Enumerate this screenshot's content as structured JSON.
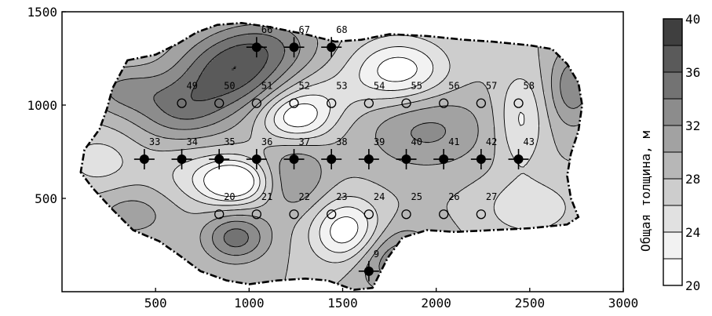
{
  "chart_data": {
    "type": "heatmap",
    "title": "",
    "xlabel": "",
    "ylabel": "",
    "xlim": [
      0,
      3000
    ],
    "ylim": [
      0,
      1500
    ],
    "x_ticks": [
      500,
      1000,
      1500,
      2000,
      2500,
      3000
    ],
    "x_tick_labels": [
      "500",
      "1000",
      "1500",
      "2000",
      "2500",
      "3000"
    ],
    "y_ticks": [
      500,
      1000,
      1500
    ],
    "y_tick_labels": [
      "500",
      "1000",
      "1500"
    ],
    "grid": false,
    "colorbar": {
      "title": "Общая толщина, м",
      "levels": [
        20,
        22,
        24,
        26,
        28,
        30,
        32,
        34,
        36,
        38,
        40
      ],
      "tick_values": [
        20,
        24,
        28,
        32,
        36,
        40
      ],
      "tick_labels": [
        "20",
        "24",
        "28",
        "32",
        "36",
        "40"
      ],
      "colors": [
        "#ffffff",
        "#f2f2f2",
        "#e1e1e1",
        "#cdcdcd",
        "#b7b7b7",
        "#a2a2a2",
        "#8c8c8c",
        "#737373",
        "#5a5a5a",
        "#3f3f3f"
      ]
    },
    "boundary": [
      [
        350,
        1240
      ],
      [
        500,
        1270
      ],
      [
        620,
        1330
      ],
      [
        720,
        1390
      ],
      [
        830,
        1430
      ],
      [
        960,
        1440
      ],
      [
        1100,
        1420
      ],
      [
        1300,
        1380
      ],
      [
        1460,
        1340
      ],
      [
        1600,
        1350
      ],
      [
        1750,
        1380
      ],
      [
        1950,
        1370
      ],
      [
        2150,
        1350
      ],
      [
        2300,
        1340
      ],
      [
        2500,
        1320
      ],
      [
        2620,
        1300
      ],
      [
        2700,
        1220
      ],
      [
        2760,
        1120
      ],
      [
        2780,
        1000
      ],
      [
        2760,
        860
      ],
      [
        2720,
        740
      ],
      [
        2700,
        620
      ],
      [
        2720,
        500
      ],
      [
        2760,
        400
      ],
      [
        2700,
        360
      ],
      [
        2500,
        340
      ],
      [
        2300,
        330
      ],
      [
        2100,
        320
      ],
      [
        1950,
        330
      ],
      [
        1820,
        290
      ],
      [
        1740,
        180
      ],
      [
        1660,
        20
      ],
      [
        1560,
        10
      ],
      [
        1420,
        60
      ],
      [
        1300,
        70
      ],
      [
        1150,
        60
      ],
      [
        1000,
        40
      ],
      [
        880,
        60
      ],
      [
        740,
        110
      ],
      [
        620,
        200
      ],
      [
        520,
        270
      ],
      [
        380,
        330
      ],
      [
        260,
        450
      ],
      [
        160,
        560
      ],
      [
        100,
        640
      ],
      [
        120,
        760
      ],
      [
        200,
        870
      ],
      [
        240,
        980
      ],
      [
        270,
        1090
      ]
    ],
    "contour_field": {
      "base": 28,
      "bumps": [
        {
          "x": 900,
          "y": 1170,
          "amp": 8.5,
          "sx": 210,
          "sy": 140
        },
        {
          "x": 640,
          "y": 970,
          "amp": 5.5,
          "sx": 180,
          "sy": 120
        },
        {
          "x": 1100,
          "y": 1330,
          "amp": 4.5,
          "sx": 200,
          "sy": 110
        },
        {
          "x": 1800,
          "y": 1180,
          "amp": -7.5,
          "sx": 180,
          "sy": 120
        },
        {
          "x": 1250,
          "y": 930,
          "amp": -7.5,
          "sx": 130,
          "sy": 90
        },
        {
          "x": 920,
          "y": 590,
          "amp": -9.5,
          "sx": 120,
          "sy": 80
        },
        {
          "x": 1520,
          "y": 320,
          "amp": -8.0,
          "sx": 130,
          "sy": 120
        },
        {
          "x": 2450,
          "y": 920,
          "amp": -4.5,
          "sx": 90,
          "sy": 180
        },
        {
          "x": 2500,
          "y": 450,
          "amp": -3.5,
          "sx": 180,
          "sy": 110
        },
        {
          "x": 1950,
          "y": 870,
          "amp": 4.5,
          "sx": 230,
          "sy": 150
        },
        {
          "x": 1250,
          "y": 620,
          "amp": 4.0,
          "sx": 120,
          "sy": 140
        },
        {
          "x": 930,
          "y": 290,
          "amp": 7.0,
          "sx": 120,
          "sy": 90
        },
        {
          "x": 1780,
          "y": 170,
          "amp": 6.0,
          "sx": 160,
          "sy": 120
        },
        {
          "x": 2730,
          "y": 1100,
          "amp": 5.5,
          "sx": 90,
          "sy": 150
        },
        {
          "x": 320,
          "y": 1080,
          "amp": 4.0,
          "sx": 150,
          "sy": 90
        },
        {
          "x": 200,
          "y": 700,
          "amp": -3.0,
          "sx": 140,
          "sy": 110
        },
        {
          "x": 380,
          "y": 420,
          "amp": 3.0,
          "sx": 160,
          "sy": 100
        },
        {
          "x": 1380,
          "y": 1050,
          "amp": -2.5,
          "sx": 160,
          "sy": 100
        },
        {
          "x": 700,
          "y": 620,
          "amp": -2.5,
          "sx": 160,
          "sy": 120
        }
      ]
    },
    "wells": [
      {
        "label": "66",
        "x": 1040,
        "y": 1310,
        "type": "filled"
      },
      {
        "label": "67",
        "x": 1240,
        "y": 1310,
        "type": "filled"
      },
      {
        "label": "68",
        "x": 1440,
        "y": 1310,
        "type": "filled"
      },
      {
        "label": "49",
        "x": 640,
        "y": 1010,
        "type": "open"
      },
      {
        "label": "50",
        "x": 840,
        "y": 1010,
        "type": "open"
      },
      {
        "label": "51",
        "x": 1040,
        "y": 1010,
        "type": "open"
      },
      {
        "label": "52",
        "x": 1240,
        "y": 1010,
        "type": "open"
      },
      {
        "label": "53",
        "x": 1440,
        "y": 1010,
        "type": "open"
      },
      {
        "label": "54",
        "x": 1640,
        "y": 1010,
        "type": "open"
      },
      {
        "label": "55",
        "x": 1840,
        "y": 1010,
        "type": "open"
      },
      {
        "label": "56",
        "x": 2040,
        "y": 1010,
        "type": "open"
      },
      {
        "label": "57",
        "x": 2240,
        "y": 1010,
        "type": "open"
      },
      {
        "label": "58",
        "x": 2440,
        "y": 1010,
        "type": "open"
      },
      {
        "label": "33",
        "x": 440,
        "y": 710,
        "type": "filled"
      },
      {
        "label": "34",
        "x": 640,
        "y": 710,
        "type": "filled"
      },
      {
        "label": "35",
        "x": 840,
        "y": 710,
        "type": "filled"
      },
      {
        "label": "36",
        "x": 1040,
        "y": 710,
        "type": "filled"
      },
      {
        "label": "37",
        "x": 1240,
        "y": 710,
        "type": "filled"
      },
      {
        "label": "38",
        "x": 1440,
        "y": 710,
        "type": "filled"
      },
      {
        "label": "39",
        "x": 1640,
        "y": 710,
        "type": "filled"
      },
      {
        "label": "40",
        "x": 1840,
        "y": 710,
        "type": "filled"
      },
      {
        "label": "41",
        "x": 2040,
        "y": 710,
        "type": "filled"
      },
      {
        "label": "42",
        "x": 2240,
        "y": 710,
        "type": "filled"
      },
      {
        "label": "43",
        "x": 2440,
        "y": 710,
        "type": "filled"
      },
      {
        "label": "20",
        "x": 840,
        "y": 415,
        "type": "open"
      },
      {
        "label": "21",
        "x": 1040,
        "y": 415,
        "type": "open"
      },
      {
        "label": "22",
        "x": 1240,
        "y": 415,
        "type": "open"
      },
      {
        "label": "23",
        "x": 1440,
        "y": 415,
        "type": "open"
      },
      {
        "label": "24",
        "x": 1640,
        "y": 415,
        "type": "open"
      },
      {
        "label": "25",
        "x": 1840,
        "y": 415,
        "type": "open"
      },
      {
        "label": "26",
        "x": 2040,
        "y": 415,
        "type": "open"
      },
      {
        "label": "27",
        "x": 2240,
        "y": 415,
        "type": "open"
      },
      {
        "label": "9",
        "x": 1640,
        "y": 110,
        "type": "filled"
      }
    ]
  }
}
